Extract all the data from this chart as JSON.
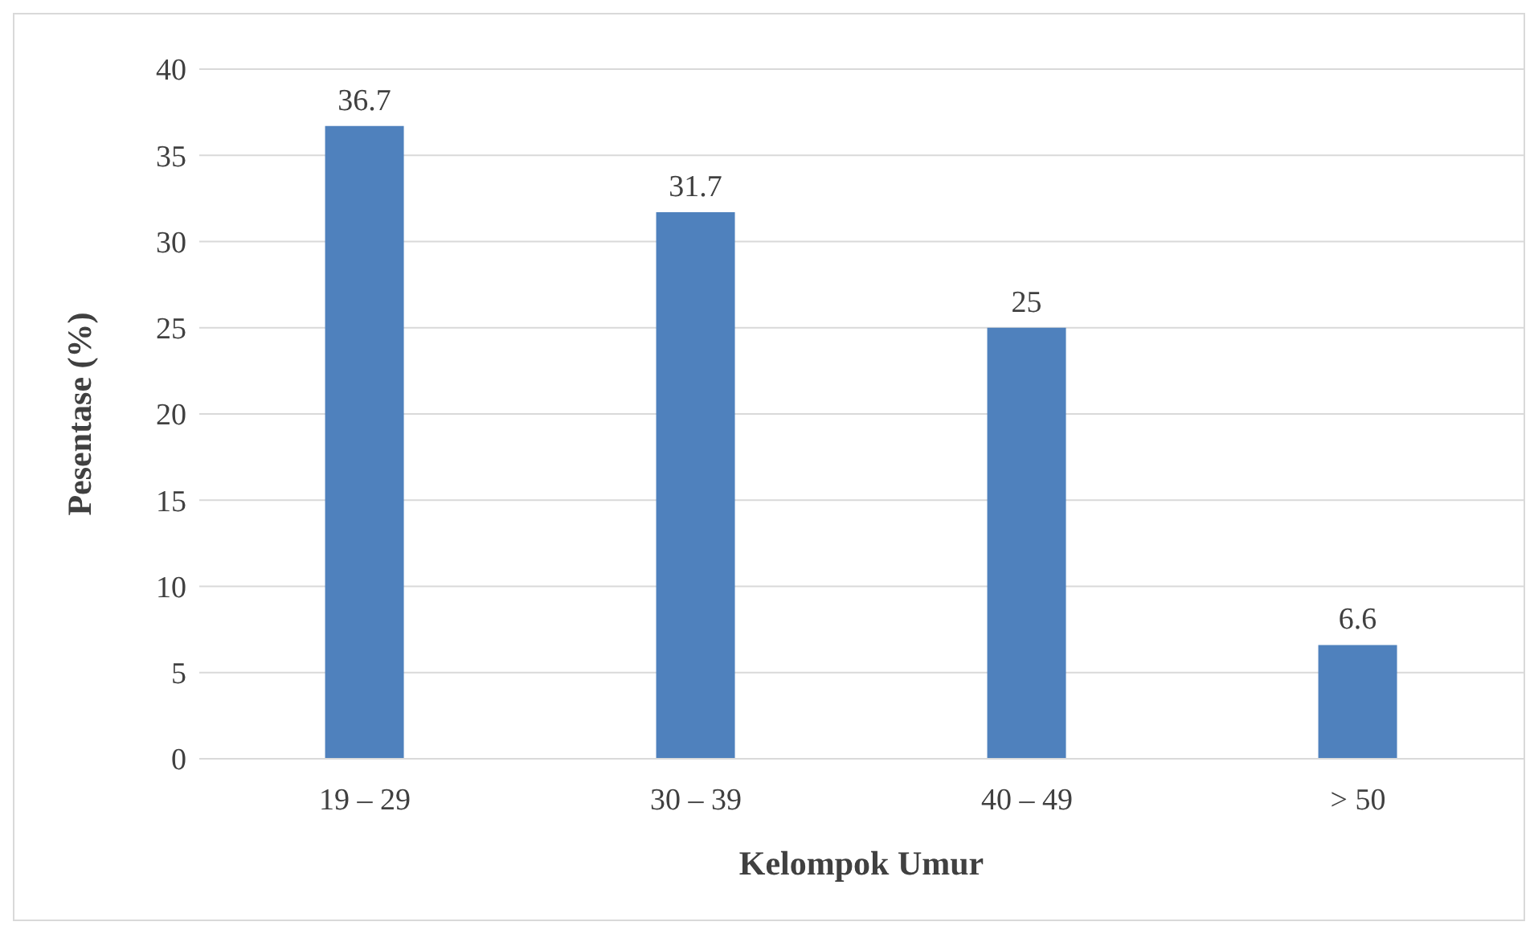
{
  "chart_data": {
    "type": "bar",
    "xlabel": "Kelompok Umur",
    "ylabel": "Pesentase (%)",
    "categories": [
      "19 – 29",
      "30 – 39",
      "40 – 49",
      "> 50"
    ],
    "values": [
      36.7,
      31.7,
      25,
      6.6
    ],
    "color": "#4f81bd",
    "ylim": [
      0,
      40
    ],
    "yticks": [
      0,
      5,
      10,
      15,
      20,
      25,
      30,
      35,
      40
    ],
    "grid": "y",
    "data_labels": true
  }
}
